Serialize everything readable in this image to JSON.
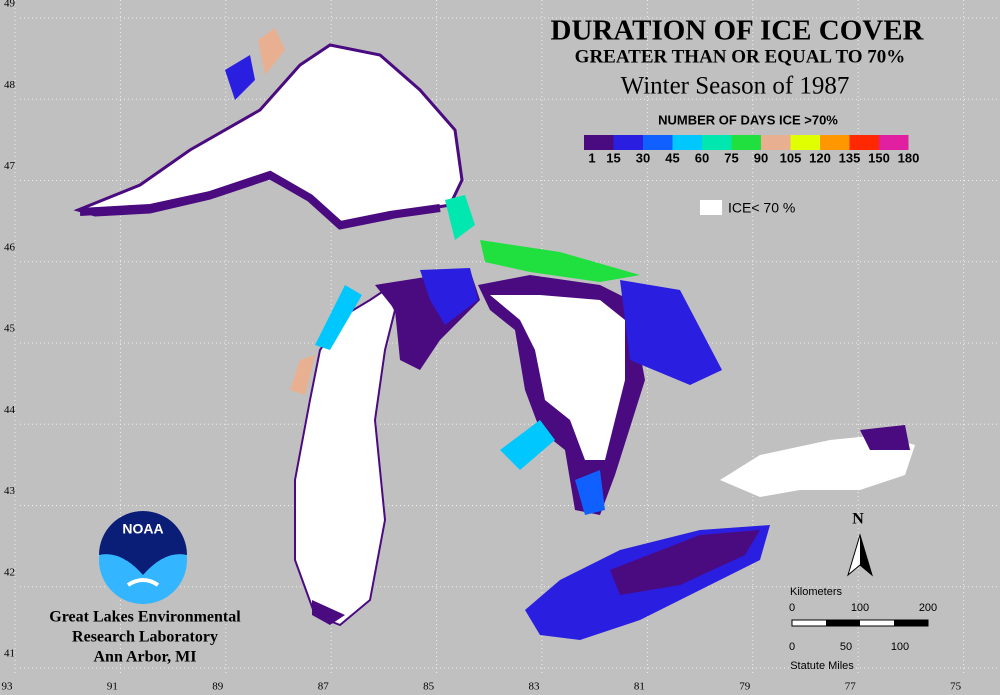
{
  "title": "DURATION OF ICE COVER",
  "subtitle": "GREATER THAN OR EQUAL TO 70%",
  "season": "Winter Season of 1987",
  "legend": {
    "title": "NUMBER OF DAYS ICE >70%",
    "colors": [
      "#4a0a80",
      "#2a1ee0",
      "#1060ff",
      "#00c8ff",
      "#00e8b0",
      "#20e040",
      "#e8b090",
      "#e0ff00",
      "#ff9800",
      "#ff2800",
      "#e020a0"
    ],
    "labels": [
      1,
      15,
      30,
      45,
      60,
      75,
      90,
      105,
      120,
      135,
      150,
      180
    ]
  },
  "ice_label": "ICE< 70 %",
  "longitudes": [
    93,
    91,
    89,
    87,
    85,
    83,
    81,
    79,
    77,
    75
  ],
  "latitudes": [
    49,
    48,
    47,
    46,
    45,
    44,
    43,
    42,
    41
  ],
  "north": "N",
  "scale": {
    "km_title": "Kilometers",
    "km": [
      0,
      100,
      200
    ],
    "mi_title": "Statute Miles",
    "mi": [
      0,
      50,
      100
    ]
  },
  "logo": "NOAA",
  "organization": [
    "Great Lakes Environmental",
    "Research Laboratory",
    "Ann Arbor, MI"
  ]
}
